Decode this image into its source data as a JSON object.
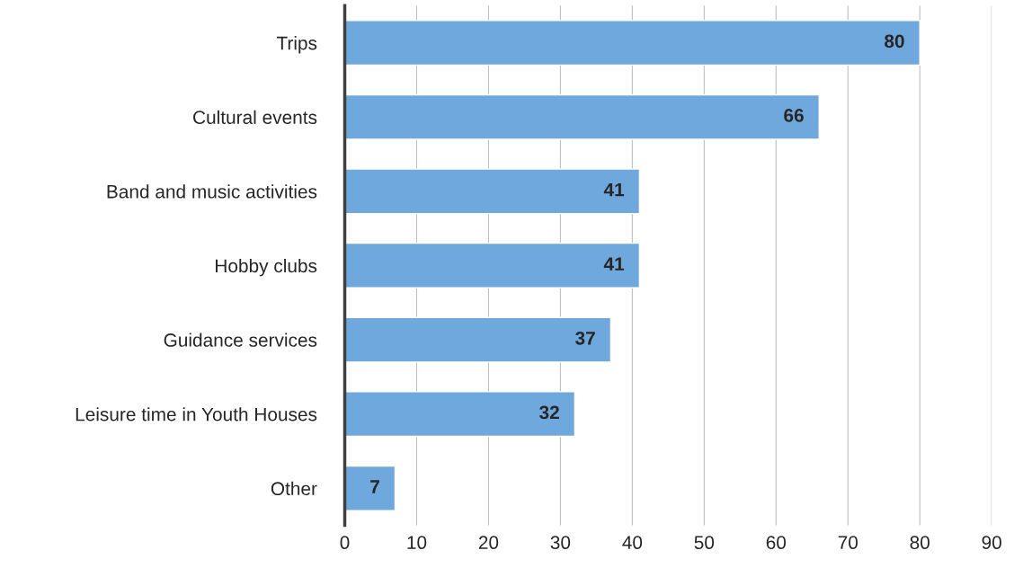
{
  "chart_data": {
    "type": "bar",
    "orientation": "horizontal",
    "categories": [
      "Trips",
      "Cultural events",
      "Band and music activities",
      "Hobby clubs",
      "Guidance services",
      "Leisure time in Youth Houses",
      "Other"
    ],
    "values": [
      80,
      66,
      41,
      41,
      37,
      32,
      7
    ],
    "color": "#6fa8dc",
    "xlim": [
      0,
      90
    ],
    "xticks": [
      0,
      10,
      20,
      30,
      40,
      50,
      60,
      70,
      80,
      90
    ],
    "grid": "x",
    "data_labels": true
  }
}
